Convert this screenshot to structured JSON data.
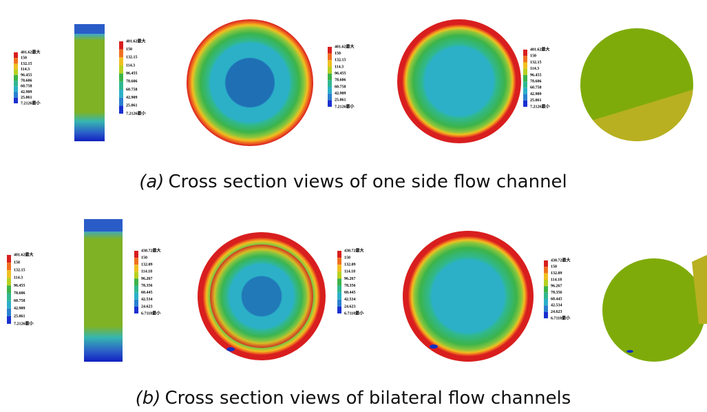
{
  "legend_sets": {
    "first": [
      "401.62最大",
      "150",
      "132.15",
      "114.3",
      "96.455",
      "78.606",
      "60.758",
      "42.909",
      "25.061",
      "7.2126最小"
    ],
    "second": [
      "430.72最大",
      "150",
      "132.09",
      "114.18",
      "96.267",
      "78.356",
      "60.445",
      "42.534",
      "24.623",
      "6.7118最小"
    ]
  },
  "panels": [
    {
      "label": "(a)",
      "caption": "Cross section views of one side flow channel"
    },
    {
      "label": "(b)",
      "caption": "Cross section views of bilateral flow channels"
    }
  ]
}
